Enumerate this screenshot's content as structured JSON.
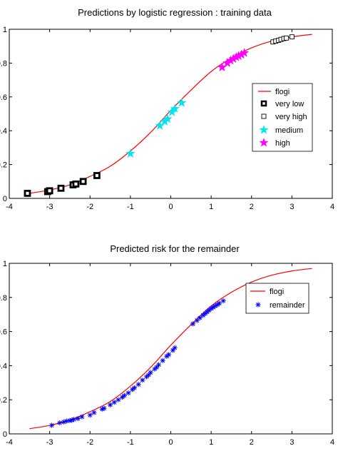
{
  "chart_data": [
    {
      "type": "scatter",
      "title": "Predictions by  logistic regression :  training data",
      "xlabel": "",
      "ylabel": "",
      "xlim": [
        -4,
        4
      ],
      "ylim": [
        0,
        1
      ],
      "xticks": [
        "-4",
        "-3",
        "-2",
        "-1",
        "0",
        "1",
        "2",
        "3",
        "4"
      ],
      "yticks": [
        "0",
        "0.2",
        "0.4",
        "0.6",
        "0.8",
        "1"
      ],
      "grid": false,
      "legend_position": "right",
      "curve": {
        "name": "flogi",
        "color": "#ff0000",
        "x": [
          -3.5,
          -3.0,
          -2.5,
          -2.0,
          -1.5,
          -1.0,
          -0.5,
          0.0,
          0.5,
          1.0,
          1.5,
          2.0,
          2.5,
          3.0,
          3.5
        ],
        "y": [
          0.03,
          0.05,
          0.08,
          0.13,
          0.19,
          0.28,
          0.39,
          0.52,
          0.64,
          0.75,
          0.83,
          0.89,
          0.93,
          0.955,
          0.97
        ]
      },
      "series": [
        {
          "name": "very low",
          "marker": "square-filled",
          "color": "#000000",
          "x": [
            -3.55,
            -3.05,
            -3.0,
            -2.72,
            -2.42,
            -2.35,
            -2.17,
            -1.83
          ],
          "y": [
            0.03,
            0.04,
            0.045,
            0.06,
            0.08,
            0.085,
            0.1,
            0.135
          ]
        },
        {
          "name": "very high",
          "marker": "square-open",
          "color": "#000000",
          "x": [
            2.53,
            2.6,
            2.67,
            2.73,
            2.8,
            2.86,
            3.0
          ],
          "y": [
            0.925,
            0.93,
            0.935,
            0.94,
            0.945,
            0.948,
            0.955
          ]
        },
        {
          "name": "medium",
          "marker": "star",
          "color": "#00e5ee",
          "x": [
            -1.0,
            -0.27,
            -0.15,
            -0.08,
            0.03,
            0.1,
            0.27
          ],
          "y": [
            0.265,
            0.43,
            0.455,
            0.47,
            0.51,
            0.53,
            0.565
          ]
        },
        {
          "name": "high",
          "marker": "star",
          "color": "#ff00ff",
          "x": [
            1.27,
            1.4,
            1.48,
            1.55,
            1.62,
            1.68,
            1.75,
            1.82
          ],
          "y": [
            0.775,
            0.8,
            0.815,
            0.825,
            0.835,
            0.842,
            0.85,
            0.86
          ]
        }
      ]
    },
    {
      "type": "scatter",
      "title": "Predicted risk for the remainder",
      "xlabel": "",
      "ylabel": "",
      "xlim": [
        -4,
        4
      ],
      "ylim": [
        0,
        1
      ],
      "xticks": [
        "-4",
        "-3",
        "-2",
        "-1",
        "0",
        "1",
        "2",
        "3",
        "4"
      ],
      "yticks": [
        "0",
        "0.2",
        "0.4",
        "0.6",
        "0.8",
        "1"
      ],
      "grid": false,
      "legend_position": "right",
      "curve": {
        "name": "flogi",
        "color": "#ff0000",
        "x": [
          -3.5,
          -3.0,
          -2.5,
          -2.0,
          -1.5,
          -1.0,
          -0.5,
          0.0,
          0.5,
          1.0,
          1.5,
          2.0,
          2.5,
          3.0,
          3.5
        ],
        "y": [
          0.03,
          0.05,
          0.08,
          0.13,
          0.19,
          0.28,
          0.39,
          0.52,
          0.64,
          0.75,
          0.83,
          0.89,
          0.93,
          0.955,
          0.97
        ]
      },
      "series": [
        {
          "name": "remainder",
          "marker": "asterisk",
          "color": "#0000ff",
          "x": [
            -2.95,
            -2.75,
            -2.65,
            -2.58,
            -2.5,
            -2.45,
            -2.4,
            -2.3,
            -2.2,
            -2.0,
            -1.9,
            -1.7,
            -1.65,
            -1.5,
            -1.4,
            -1.3,
            -1.2,
            -1.15,
            -1.05,
            -0.95,
            -0.9,
            -0.8,
            -0.7,
            -0.6,
            -0.55,
            -0.5,
            -0.4,
            -0.35,
            -0.3,
            -0.2,
            -0.1,
            -0.05,
            0.05,
            0.1,
            0.55,
            0.65,
            0.72,
            0.8,
            0.85,
            0.9,
            0.95,
            1.0,
            1.05,
            1.1,
            1.15,
            1.2,
            1.3
          ],
          "y": [
            0.05,
            0.065,
            0.07,
            0.075,
            0.078,
            0.08,
            0.085,
            0.09,
            0.1,
            0.11,
            0.125,
            0.145,
            0.15,
            0.17,
            0.185,
            0.2,
            0.215,
            0.225,
            0.24,
            0.26,
            0.27,
            0.29,
            0.315,
            0.335,
            0.345,
            0.36,
            0.38,
            0.39,
            0.405,
            0.43,
            0.455,
            0.465,
            0.49,
            0.505,
            0.645,
            0.665,
            0.68,
            0.695,
            0.705,
            0.715,
            0.725,
            0.735,
            0.742,
            0.75,
            0.757,
            0.765,
            0.78
          ]
        }
      ]
    }
  ]
}
